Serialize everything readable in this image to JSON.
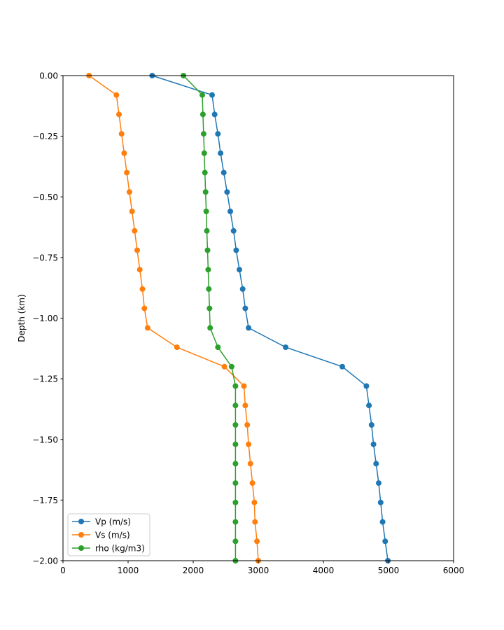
{
  "chart_data": {
    "type": "line",
    "title": "",
    "xlabel": "",
    "ylabel": "Depth (km)",
    "xlim": [
      0,
      6000
    ],
    "ylim": [
      -2.0,
      0.0
    ],
    "xticks": [
      "0",
      "1000",
      "2000",
      "3000",
      "4000",
      "5000",
      "6000"
    ],
    "yticks": [
      "0.00",
      "−0.25",
      "−0.50",
      "−0.75",
      "−1.00",
      "−1.25",
      "−1.50",
      "−1.75",
      "−2.00"
    ],
    "grid": false,
    "legend_position": "lower-left",
    "depths": [
      0.0,
      -0.08,
      -0.16,
      -0.24,
      -0.32,
      -0.4,
      -0.48,
      -0.56,
      -0.64,
      -0.72,
      -0.8,
      -0.88,
      -0.96,
      -1.04,
      -1.12,
      -1.2,
      -1.28,
      -1.36,
      -1.44,
      -1.52,
      -1.6,
      -1.68,
      -1.76,
      -1.84,
      -1.92,
      -2.0
    ],
    "series": [
      {
        "name": "Vp (m/s)",
        "color": "#1f77b4",
        "values": [
          1370,
          2290,
          2330,
          2380,
          2420,
          2470,
          2520,
          2570,
          2620,
          2660,
          2710,
          2760,
          2800,
          2850,
          3420,
          4290,
          4660,
          4700,
          4740,
          4770,
          4810,
          4850,
          4880,
          4910,
          4950,
          4990
        ]
      },
      {
        "name": "Vs (m/s)",
        "color": "#ff7f0e",
        "values": [
          400,
          820,
          860,
          900,
          940,
          980,
          1020,
          1060,
          1100,
          1140,
          1180,
          1220,
          1250,
          1300,
          1750,
          2480,
          2780,
          2800,
          2830,
          2850,
          2880,
          2910,
          2940,
          2950,
          2980,
          3000
        ]
      },
      {
        "name": "rho (kg/m3)",
        "color": "#2ca02c",
        "values": [
          1850,
          2140,
          2150,
          2160,
          2170,
          2180,
          2190,
          2200,
          2210,
          2220,
          2230,
          2240,
          2250,
          2260,
          2380,
          2590,
          2650,
          2650,
          2650,
          2650,
          2650,
          2650,
          2650,
          2650,
          2650,
          2650
        ]
      }
    ]
  }
}
